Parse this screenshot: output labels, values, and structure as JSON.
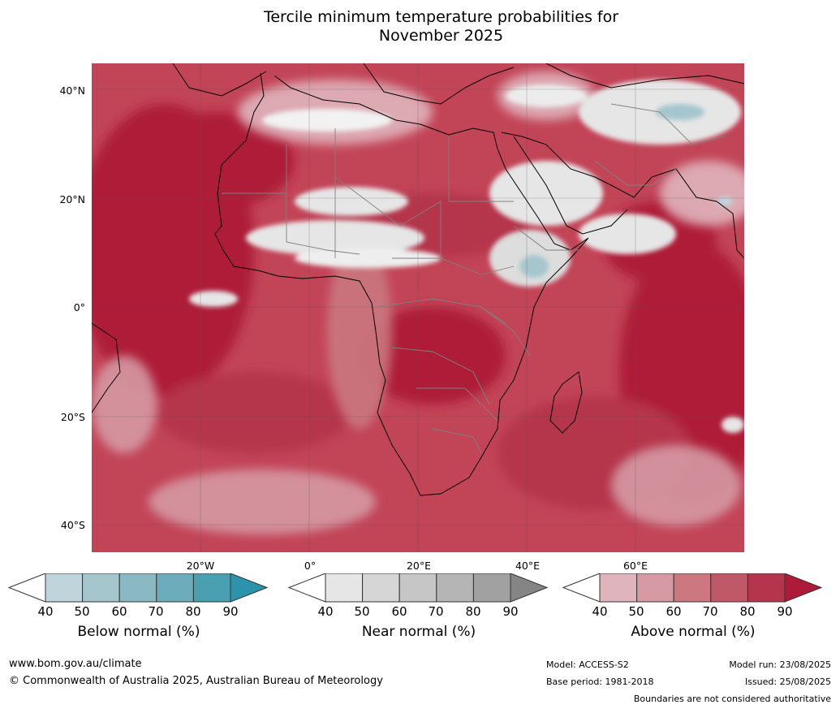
{
  "title_line1": "Tercile minimum temperature probabilities for",
  "title_line2": "November 2025",
  "lat_ticks": [
    "40°N",
    "20°N",
    "0°",
    "20°S",
    "40°S"
  ],
  "lon_ticks": [
    "20°W",
    "0°",
    "20°E",
    "40°E",
    "60°E"
  ],
  "colorbars": [
    {
      "label": "Below normal (%)",
      "ticks": [
        "40",
        "50",
        "60",
        "70",
        "80",
        "90"
      ],
      "colors": [
        "#ffffff",
        "#bfd5db",
        "#a6c6ce",
        "#8ab8c3",
        "#6dadbb",
        "#4a9fb0",
        "#2d93ad"
      ]
    },
    {
      "label": "Near normal (%)",
      "ticks": [
        "40",
        "50",
        "60",
        "70",
        "80",
        "90"
      ],
      "colors": [
        "#ffffff",
        "#e6e6e6",
        "#d6d6d6",
        "#c6c6c6",
        "#b5b5b5",
        "#a1a1a1",
        "#858585"
      ]
    },
    {
      "label": "Above normal (%)",
      "ticks": [
        "40",
        "50",
        "60",
        "70",
        "80",
        "90"
      ],
      "colors": [
        "#ffffff",
        "#e0b4bc",
        "#d59aa4",
        "#cb7880",
        "#bf5867",
        "#b5364c",
        "#ae1b38"
      ]
    }
  ],
  "footer": {
    "website": "www.bom.gov.au/climate",
    "copyright": "© Commonwealth of Australia 2025, Australian Bureau of Meteorology",
    "model": "Model: ACCESS-S2",
    "base_period": "Base period: 1981-2018",
    "model_run": "Model run: 23/08/2025",
    "issued": "Issued: 25/08/2025",
    "disclaimer": "Boundaries are not considered authoritative"
  }
}
